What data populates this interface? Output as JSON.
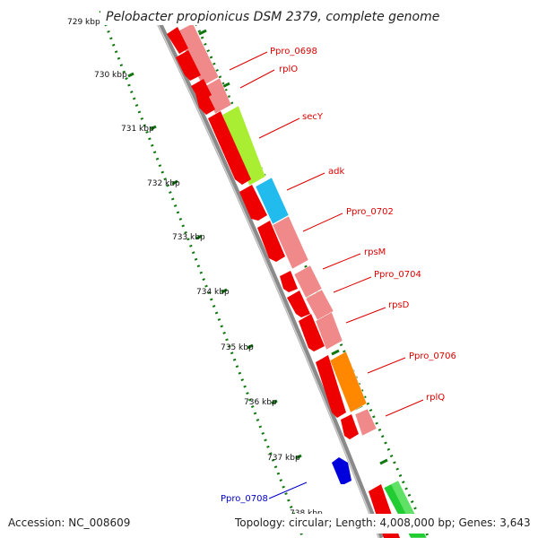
{
  "title": "Pelobacter propionicus DSM 2379, complete genome",
  "accession": "Accession: NC_008609",
  "summary": "Topology: circular; Length: 4,008,000 bp; Genes: 3,643",
  "ticks": [
    "729 kbp",
    "730 kbp",
    "731 kbp",
    "732 kbp",
    "733 kbp",
    "734 kbp",
    "735 kbp",
    "736 kbp",
    "737 kbp",
    "738 kbp"
  ],
  "gene_labels": [
    {
      "text": "Ppro_0698",
      "color": "#dd0000"
    },
    {
      "text": "rplO",
      "color": "#dd0000"
    },
    {
      "text": "secY",
      "color": "#dd0000"
    },
    {
      "text": "adk",
      "color": "#dd0000"
    },
    {
      "text": "Ppro_0702",
      "color": "#dd0000"
    },
    {
      "text": "rpsM",
      "color": "#dd0000"
    },
    {
      "text": "Ppro_0704",
      "color": "#dd0000"
    },
    {
      "text": "rpsD",
      "color": "#dd0000"
    },
    {
      "text": "Ppro_0706",
      "color": "#dd0000"
    },
    {
      "text": "rplQ",
      "color": "#dd0000"
    },
    {
      "text": "Ppro_0708",
      "color": "#0000cc"
    }
  ],
  "colors": {
    "cds": "#ee0000",
    "cds_light": "#f08a8a",
    "secY": "#aaee33",
    "adk": "#22bbee",
    "ppro_0706": "#ff8800",
    "ppro_0708": "#0000dd",
    "green_gene": "#22cc33",
    "backbone": "#888888",
    "tick_marks": "#117711"
  }
}
